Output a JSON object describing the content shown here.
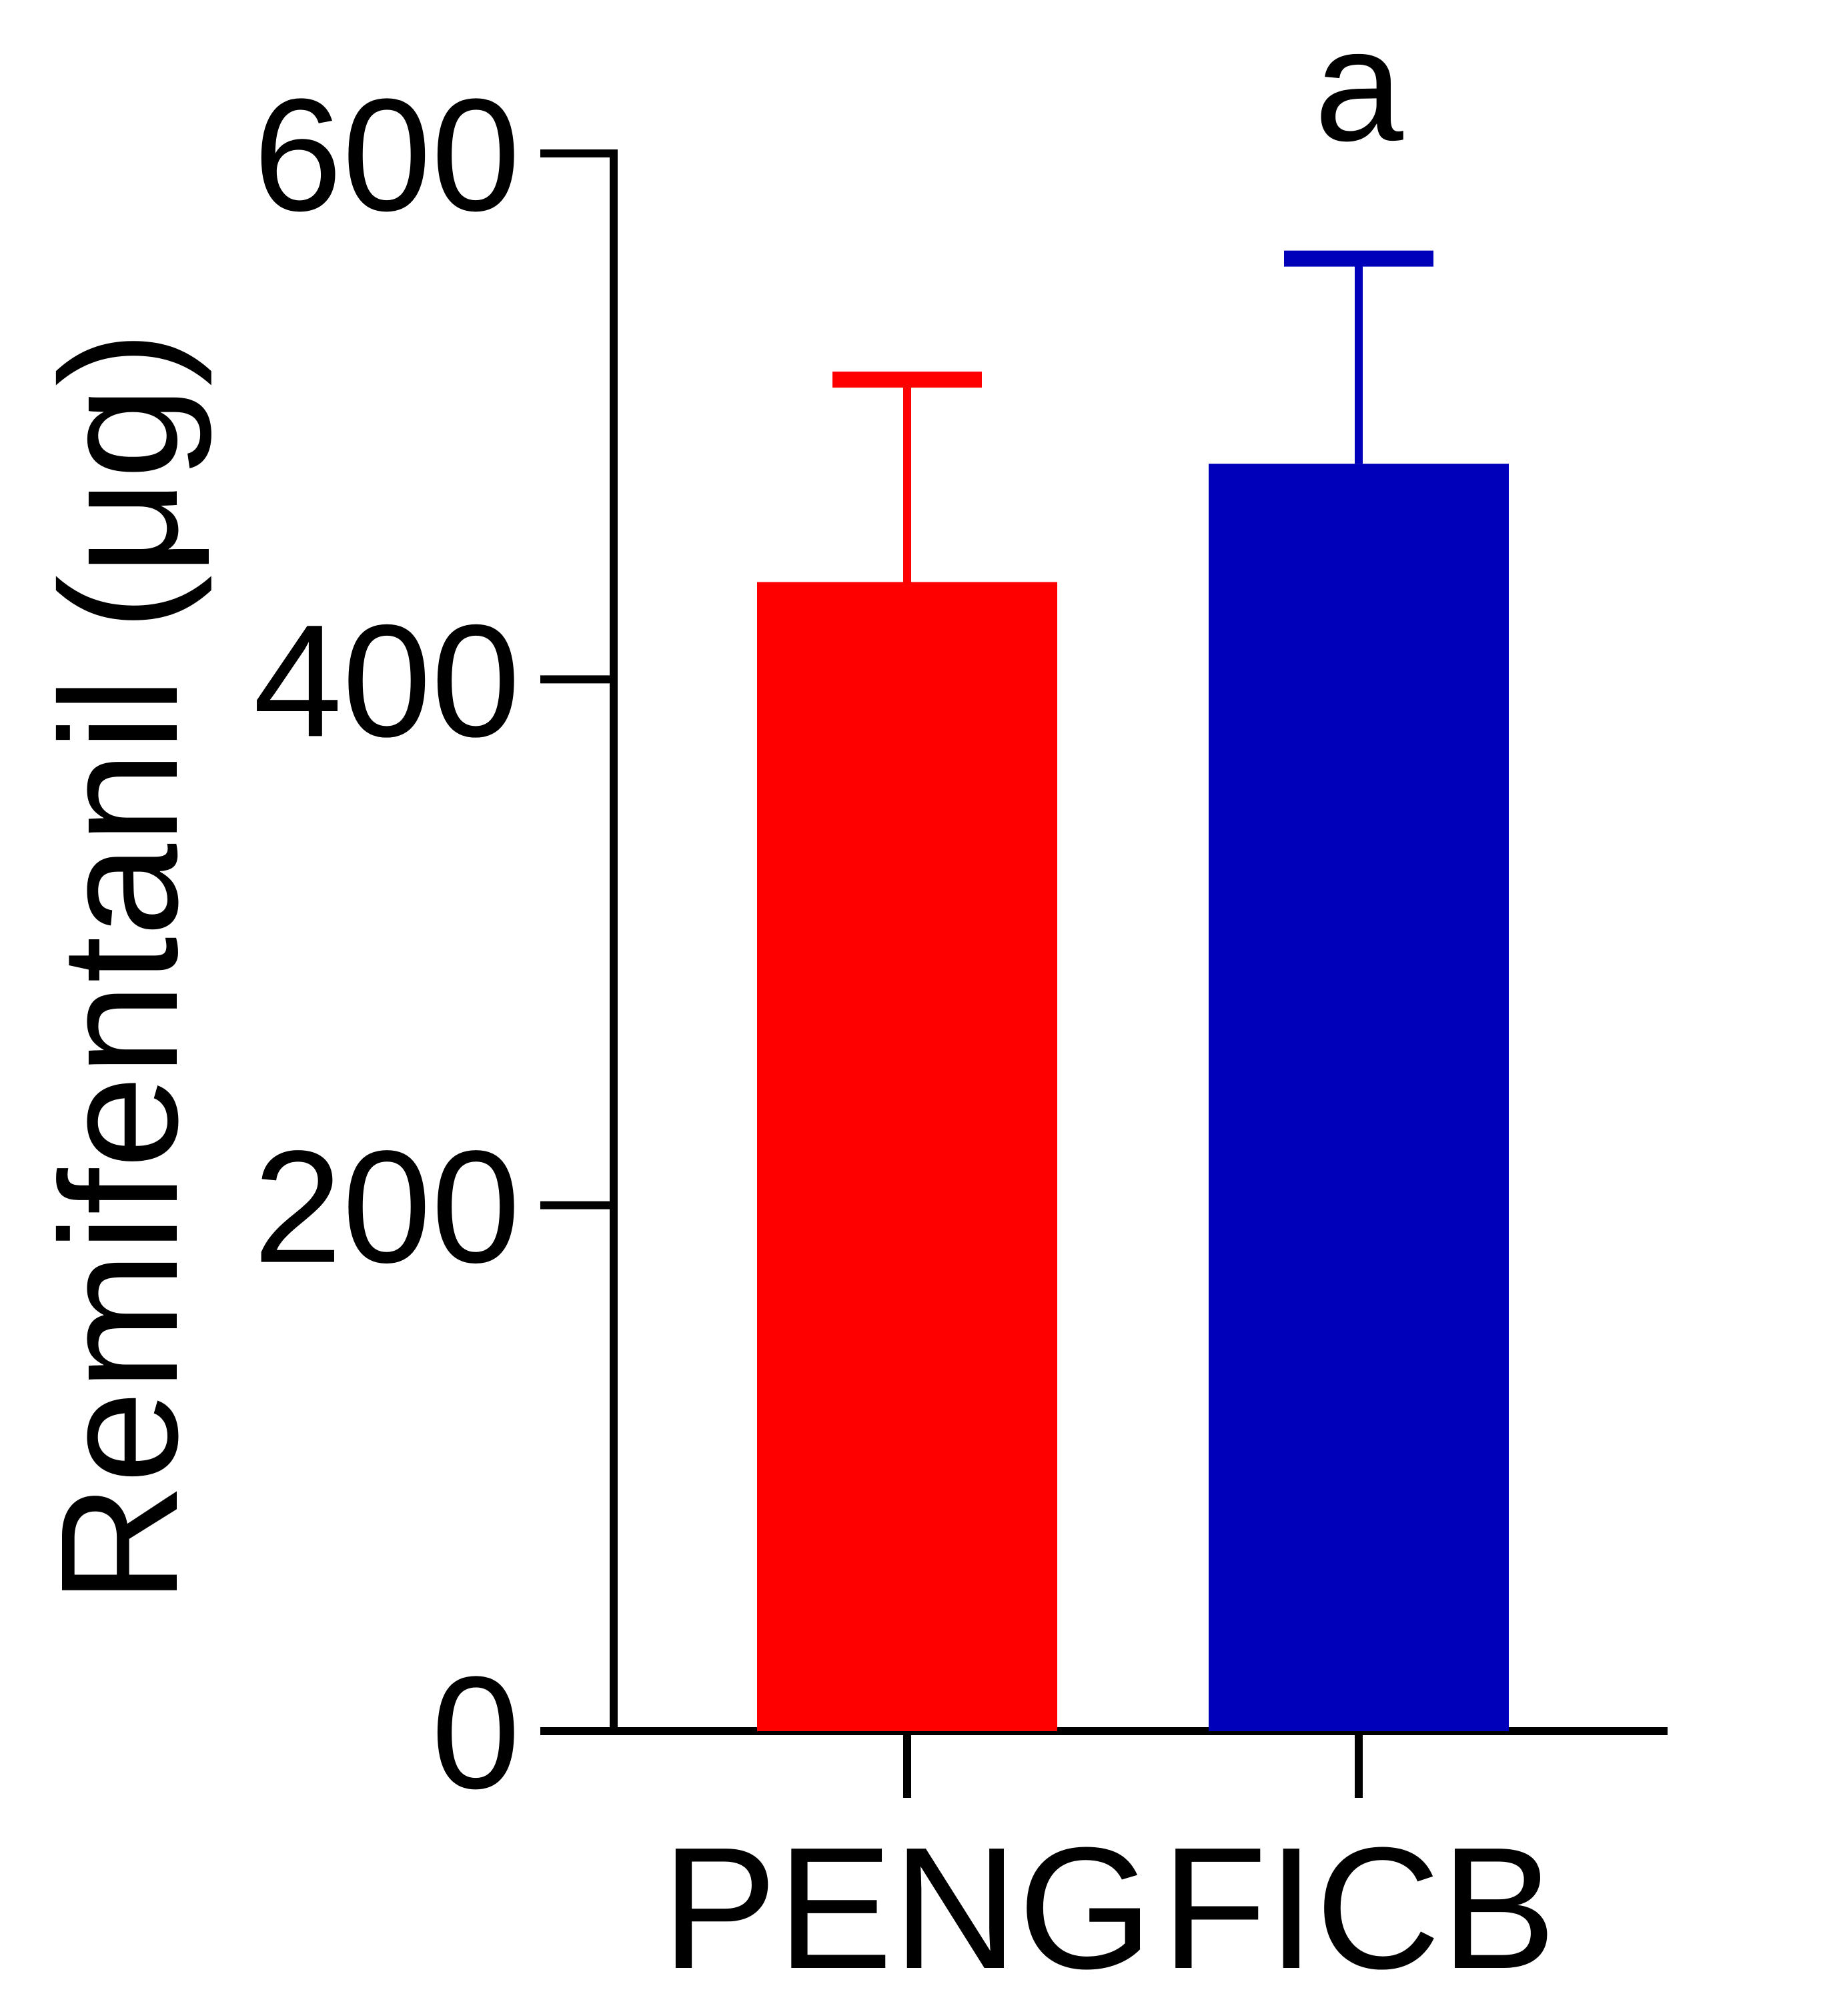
{
  "chart_data": {
    "type": "bar",
    "categories": [
      "PENG",
      "FICB"
    ],
    "series": [
      {
        "values": [
          437,
          482
        ],
        "error": [
          77,
          78
        ],
        "colors": [
          "#ff0000",
          "#0000bb"
        ]
      }
    ],
    "annotations": [
      {
        "category": "FICB",
        "text": "a"
      }
    ],
    "title": "",
    "xlabel": "",
    "ylabel": "Remifentanil (μg)",
    "ylim": [
      0,
      600
    ],
    "yticks": [
      0,
      200,
      400,
      600
    ],
    "ytick_labels": [
      "0",
      "200",
      "400",
      "600"
    ],
    "grid": false,
    "legend": "none",
    "axis_color": "#000000"
  }
}
